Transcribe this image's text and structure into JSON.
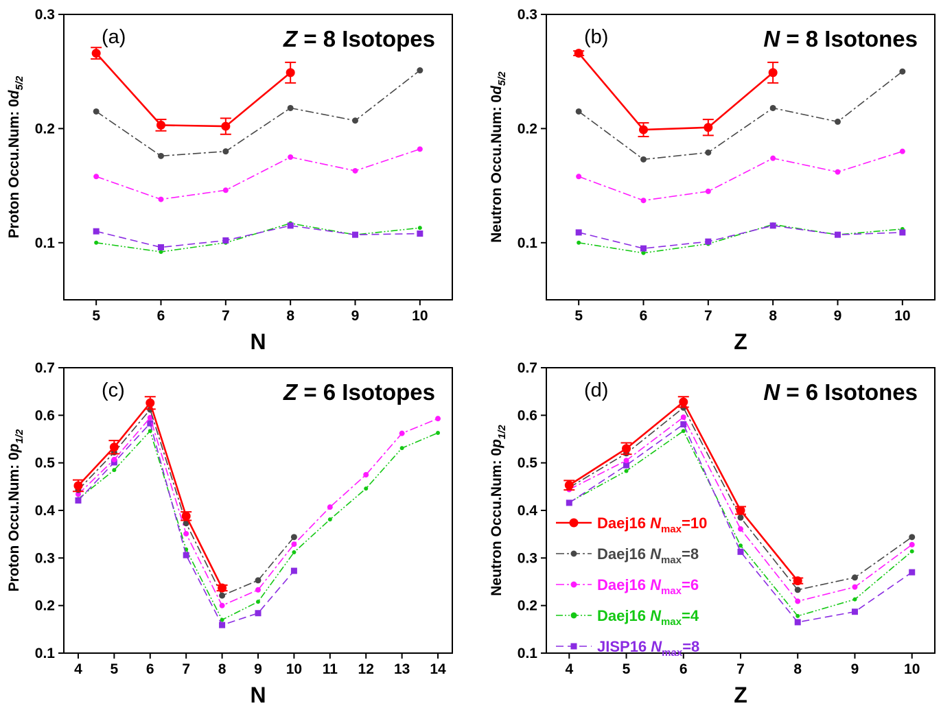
{
  "chart_data": [
    {
      "id": "a",
      "type": "line",
      "panel_label": "(a)",
      "title_italic": "Z",
      "title_rest": " = 8 Isotopes",
      "ylabel_prefix": "Proton Occu.Num: 0",
      "ylabel_orbital": "d",
      "ylabel_sub": "5/2",
      "xlabel": "N",
      "xlabel_italic": false,
      "xlim": [
        4.5,
        10.5
      ],
      "ylim": [
        0.05,
        0.3
      ],
      "xticks": [
        5,
        6,
        7,
        8,
        9,
        10
      ],
      "yticks": [
        0.1,
        0.2,
        0.3
      ],
      "ytick_labels": [
        "0.1",
        "0.2",
        "0.3"
      ],
      "series": [
        {
          "name": "Daej16 Nmax=10",
          "x": [
            5,
            6,
            7,
            8
          ],
          "y": [
            0.266,
            0.203,
            0.202,
            0.249
          ],
          "err": [
            0.005,
            0.005,
            0.007,
            0.009
          ]
        },
        {
          "name": "Daej16 Nmax=8",
          "x": [
            5,
            6,
            7,
            8,
            9,
            10
          ],
          "y": [
            0.215,
            0.176,
            0.18,
            0.218,
            0.207,
            0.251
          ]
        },
        {
          "name": "Daej16 Nmax=6",
          "x": [
            5,
            6,
            7,
            8,
            9,
            10
          ],
          "y": [
            0.158,
            0.138,
            0.146,
            0.175,
            0.163,
            0.182
          ]
        },
        {
          "name": "Daej16 Nmax=4",
          "x": [
            5,
            6,
            7,
            8,
            9,
            10
          ],
          "y": [
            0.1,
            0.092,
            0.1,
            0.117,
            0.107,
            0.113
          ]
        },
        {
          "name": "JISP16 Nmax=8",
          "x": [
            5,
            6,
            7,
            8,
            9,
            10
          ],
          "y": [
            0.11,
            0.096,
            0.102,
            0.115,
            0.107,
            0.108
          ]
        }
      ],
      "legend": false
    },
    {
      "id": "b",
      "type": "line",
      "panel_label": "(b)",
      "title_italic": "N",
      "title_rest": " = 8 Isotones",
      "ylabel_prefix": "Neutron Occu.Num: 0",
      "ylabel_orbital": "d",
      "ylabel_sub": "5/2",
      "xlabel": "Z",
      "xlabel_italic": false,
      "xlim": [
        4.5,
        10.5
      ],
      "ylim": [
        0.05,
        0.3
      ],
      "xticks": [
        5,
        6,
        7,
        8,
        9,
        10
      ],
      "yticks": [
        0.1,
        0.2,
        0.3
      ],
      "ytick_labels": [
        "0.1",
        "0.2",
        "0.3"
      ],
      "series": [
        {
          "name": "Daej16 Nmax=10",
          "x": [
            5,
            6,
            7,
            8
          ],
          "y": [
            0.266,
            0.199,
            0.201,
            0.249
          ],
          "err": [
            0.002,
            0.006,
            0.007,
            0.009
          ]
        },
        {
          "name": "Daej16 Nmax=8",
          "x": [
            5,
            6,
            7,
            8,
            9,
            10
          ],
          "y": [
            0.215,
            0.173,
            0.179,
            0.218,
            0.206,
            0.25
          ]
        },
        {
          "name": "Daej16 Nmax=6",
          "x": [
            5,
            6,
            7,
            8,
            9,
            10
          ],
          "y": [
            0.158,
            0.137,
            0.145,
            0.174,
            0.162,
            0.18
          ]
        },
        {
          "name": "Daej16 Nmax=4",
          "x": [
            5,
            6,
            7,
            8,
            9,
            10
          ],
          "y": [
            0.1,
            0.091,
            0.099,
            0.116,
            0.107,
            0.112
          ]
        },
        {
          "name": "JISP16 Nmax=8",
          "x": [
            5,
            6,
            7,
            8,
            9,
            10
          ],
          "y": [
            0.109,
            0.095,
            0.101,
            0.115,
            0.107,
            0.109
          ]
        }
      ],
      "legend": false
    },
    {
      "id": "c",
      "type": "line",
      "panel_label": "(c)",
      "title_italic": "Z",
      "title_rest": " = 6 Isotopes",
      "ylabel_prefix": "Proton Occu.Num: 0",
      "ylabel_orbital": "p",
      "ylabel_sub": "1/2",
      "xlabel": "N",
      "xlabel_italic": false,
      "xlim": [
        3.6,
        14.4
      ],
      "ylim": [
        0.1,
        0.7
      ],
      "xticks": [
        4,
        5,
        6,
        7,
        8,
        9,
        10,
        11,
        12,
        13,
        14
      ],
      "yticks": [
        0.1,
        0.2,
        0.3,
        0.4,
        0.5,
        0.6,
        0.7
      ],
      "ytick_labels": [
        "0.1",
        "0.2",
        "0.3",
        "0.4",
        "0.5",
        "0.6",
        "0.7"
      ],
      "series": [
        {
          "name": "Daej16 Nmax=10",
          "x": [
            4,
            5,
            6,
            7,
            8
          ],
          "y": [
            0.452,
            0.533,
            0.626,
            0.388,
            0.237
          ],
          "err": [
            0.012,
            0.014,
            0.013,
            0.009,
            0.006
          ]
        },
        {
          "name": "Daej16 Nmax=8",
          "x": [
            4,
            5,
            6,
            7,
            8,
            9,
            10
          ],
          "y": [
            0.443,
            0.522,
            0.612,
            0.373,
            0.221,
            0.253,
            0.344
          ]
        },
        {
          "name": "Daej16 Nmax=6",
          "x": [
            4,
            5,
            6,
            7,
            8,
            9,
            10,
            11,
            12,
            13,
            14
          ],
          "y": [
            0.434,
            0.507,
            0.595,
            0.351,
            0.2,
            0.233,
            0.329,
            0.407,
            0.475,
            0.562,
            0.593
          ]
        },
        {
          "name": "Daej16 Nmax=4",
          "x": [
            4,
            5,
            6,
            7,
            8,
            9,
            10,
            11,
            12,
            13,
            14
          ],
          "y": [
            0.424,
            0.485,
            0.567,
            0.318,
            0.17,
            0.208,
            0.312,
            0.381,
            0.446,
            0.531,
            0.563
          ]
        },
        {
          "name": "JISP16 Nmax=8",
          "x": [
            4,
            5,
            6,
            7,
            8,
            9,
            10
          ],
          "y": [
            0.421,
            0.501,
            0.583,
            0.306,
            0.159,
            0.184,
            0.273
          ]
        }
      ],
      "legend": false
    },
    {
      "id": "d",
      "type": "line",
      "panel_label": "(d)",
      "title_italic": "N",
      "title_rest": " = 6 Isotones",
      "ylabel_prefix": "Neutron Occu.Num: 0",
      "ylabel_orbital": "p",
      "ylabel_sub": "1/2",
      "xlabel": "Z",
      "xlabel_italic": false,
      "xlim": [
        3.6,
        10.4
      ],
      "ylim": [
        0.1,
        0.7
      ],
      "xticks": [
        4,
        5,
        6,
        7,
        8,
        9,
        10
      ],
      "yticks": [
        0.1,
        0.2,
        0.3,
        0.4,
        0.5,
        0.6,
        0.7
      ],
      "ytick_labels": [
        "0.1",
        "0.2",
        "0.3",
        "0.4",
        "0.5",
        "0.6",
        "0.7"
      ],
      "series": [
        {
          "name": "Daej16 Nmax=10",
          "x": [
            4,
            5,
            6,
            7,
            8
          ],
          "y": [
            0.453,
            0.53,
            0.628,
            0.4,
            0.252
          ],
          "err": [
            0.01,
            0.012,
            0.011,
            0.008,
            0.006
          ]
        },
        {
          "name": "Daej16 Nmax=8",
          "x": [
            4,
            5,
            6,
            7,
            8,
            9,
            10
          ],
          "y": [
            0.448,
            0.52,
            0.616,
            0.385,
            0.233,
            0.259,
            0.344
          ]
        },
        {
          "name": "Daej16 Nmax=6",
          "x": [
            4,
            5,
            6,
            7,
            8,
            9,
            10
          ],
          "y": [
            0.444,
            0.505,
            0.596,
            0.361,
            0.209,
            0.239,
            0.328
          ]
        },
        {
          "name": "Daej16 Nmax=4",
          "x": [
            4,
            5,
            6,
            7,
            8,
            9,
            10
          ],
          "y": [
            0.417,
            0.483,
            0.567,
            0.326,
            0.178,
            0.213,
            0.314
          ]
        },
        {
          "name": "JISP16 Nmax=8",
          "x": [
            4,
            5,
            6,
            7,
            8,
            9,
            10
          ],
          "y": [
            0.416,
            0.495,
            0.581,
            0.313,
            0.165,
            0.187,
            0.27
          ]
        }
      ],
      "legend": true,
      "legend_placement": "lower-left"
    }
  ],
  "series_styles": [
    {
      "name": "Daej16 Nmax=10",
      "color": "#ff0000",
      "dash": "solid",
      "marker": "circle",
      "legend_label": "Daej16 ",
      "legend_italic": "N",
      "legend_sub": "max",
      "legend_value": "=10"
    },
    {
      "name": "Daej16 Nmax=8",
      "color": "#474747",
      "dash": "dashdot",
      "marker": "circle",
      "legend_label": "Daej16 ",
      "legend_italic": "N",
      "legend_sub": "max",
      "legend_value": "=8"
    },
    {
      "name": "Daej16 Nmax=6",
      "color": "#ff1aff",
      "dash": "dashdot",
      "marker": "circle",
      "legend_label": "Daej16 ",
      "legend_italic": "N",
      "legend_sub": "max",
      "legend_value": "=6"
    },
    {
      "name": "Daej16 Nmax=4",
      "color": "#14c814",
      "dash": "dashdotdot",
      "marker": "circle",
      "legend_label": "Daej16 ",
      "legend_italic": "N",
      "legend_sub": "max",
      "legend_value": "=4"
    },
    {
      "name": "JISP16 Nmax=8",
      "color": "#8a2be2",
      "dash": "dashed",
      "marker": "square",
      "legend_label": "JISP16 ",
      "legend_italic": "N",
      "legend_sub": "max",
      "legend_value": "=8"
    }
  ]
}
